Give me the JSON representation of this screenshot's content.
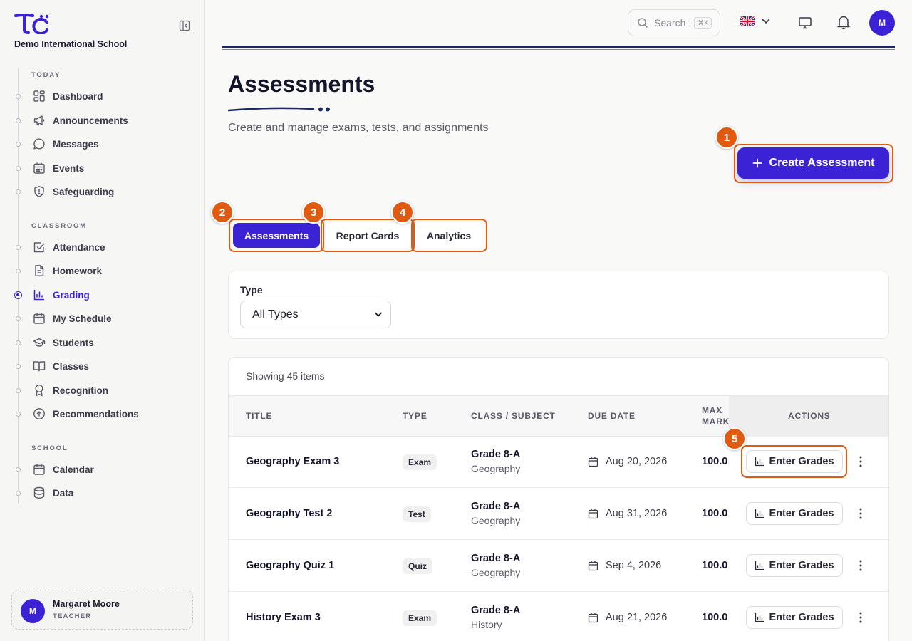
{
  "sidebar": {
    "school_name": "Demo International School",
    "sections": [
      {
        "label": "TODAY",
        "items": [
          {
            "label": "Dashboard",
            "icon": "grid-icon"
          },
          {
            "label": "Announcements",
            "icon": "megaphone-icon"
          },
          {
            "label": "Messages",
            "icon": "chat-icon"
          },
          {
            "label": "Events",
            "icon": "calendar-icon"
          },
          {
            "label": "Safeguarding",
            "icon": "shield-icon"
          }
        ]
      },
      {
        "label": "CLASSROOM",
        "items": [
          {
            "label": "Attendance",
            "icon": "checkbox-icon"
          },
          {
            "label": "Homework",
            "icon": "document-icon"
          },
          {
            "label": "Grading",
            "icon": "bar-chart-icon",
            "active": true
          },
          {
            "label": "My Schedule",
            "icon": "calendar-icon"
          },
          {
            "label": "Students",
            "icon": "graduation-cap-icon"
          },
          {
            "label": "Classes",
            "icon": "book-icon"
          },
          {
            "label": "Recognition",
            "icon": "award-icon"
          },
          {
            "label": "Recommendations",
            "icon": "arrow-up-circle-icon"
          }
        ]
      },
      {
        "label": "SCHOOL",
        "items": [
          {
            "label": "Calendar",
            "icon": "calendar-icon"
          },
          {
            "label": "Data",
            "icon": "database-icon"
          }
        ]
      }
    ],
    "user": {
      "initial": "M",
      "name": "Margaret Moore",
      "role": "TEACHER"
    }
  },
  "header": {
    "search_placeholder": "Search",
    "search_shortcut": "⌘K",
    "avatar_initial": "M"
  },
  "page": {
    "title": "Assessments",
    "subtitle": "Create and manage exams, tests, and assignments",
    "create_button": "Create Assessment",
    "tabs": [
      {
        "label": "Assessments",
        "active": true
      },
      {
        "label": "Report Cards",
        "active": false
      },
      {
        "label": "Analytics",
        "active": false
      }
    ],
    "badges": [
      "1",
      "2",
      "3",
      "4",
      "5"
    ]
  },
  "filter": {
    "label": "Type",
    "selected": "All Types"
  },
  "table": {
    "showing": "Showing 45 items",
    "columns": {
      "title": "TITLE",
      "type": "TYPE",
      "class_subject": "CLASS / SUBJECT",
      "due_date": "DUE DATE",
      "max_marks": "MAX MARKS",
      "actions": "ACTIONS"
    },
    "action_label": "Enter Grades",
    "rows": [
      {
        "title": "Geography Exam 3",
        "type": "Exam",
        "class": "Grade 8-A",
        "subject": "Geography",
        "due": "Aug 20, 2026",
        "marks": "100.0"
      },
      {
        "title": "Geography Test 2",
        "type": "Test",
        "class": "Grade 8-A",
        "subject": "Geography",
        "due": "Aug 31, 2026",
        "marks": "100.0"
      },
      {
        "title": "Geography Quiz 1",
        "type": "Quiz",
        "class": "Grade 8-A",
        "subject": "Geography",
        "due": "Sep 4, 2026",
        "marks": "100.0"
      },
      {
        "title": "History Exam 3",
        "type": "Exam",
        "class": "Grade 8-A",
        "subject": "History",
        "due": "Aug 21, 2026",
        "marks": "100.0"
      }
    ]
  },
  "colors": {
    "accent": "#3b22d4",
    "highlight": "#e05a12"
  }
}
